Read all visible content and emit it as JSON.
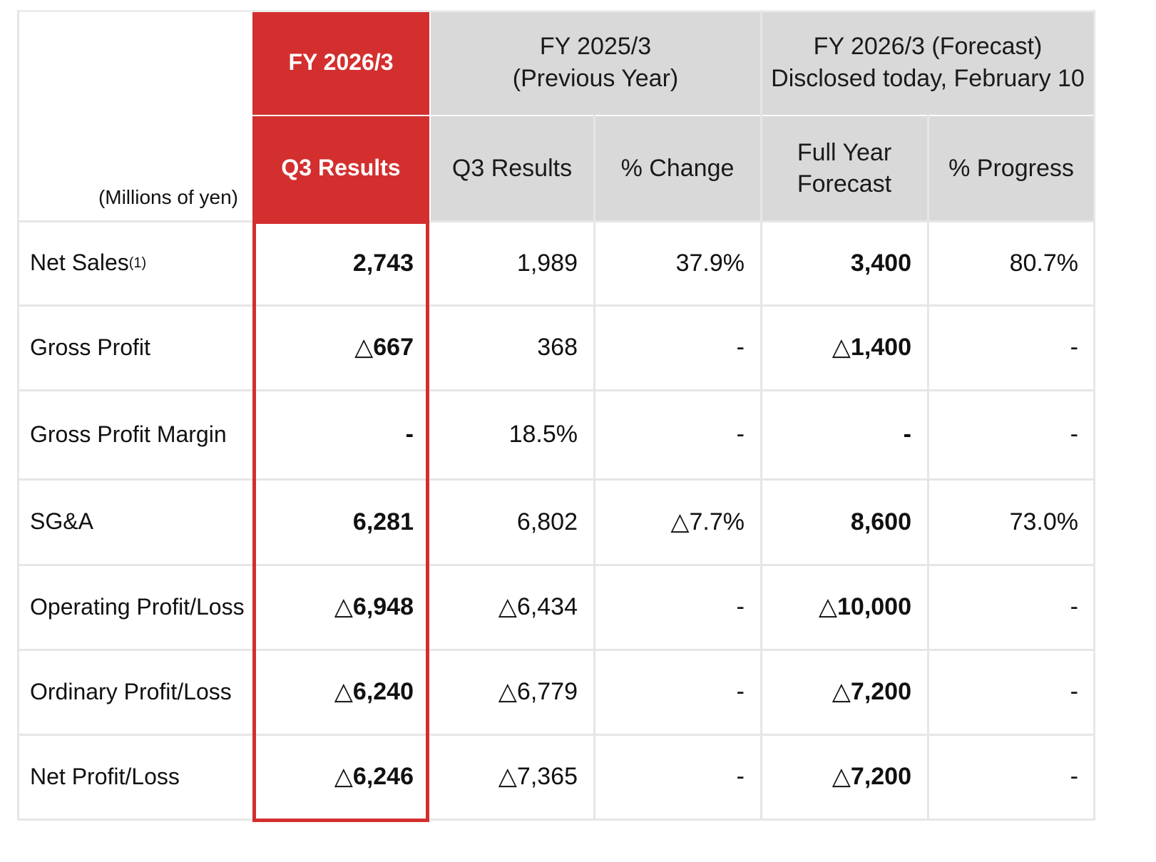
{
  "header": {
    "units_label": "(Millions of yen)",
    "current_year": "FY 2026/3",
    "current_sub": "Q3 Results",
    "prev_year_line1": "FY 2025/3",
    "prev_year_line2": "(Previous Year)",
    "prev_sub_results": "Q3 Results",
    "prev_sub_change": "% Change",
    "forecast_line1": "FY 2026/3 (Forecast)",
    "forecast_line2": "Disclosed today, February 10",
    "forecast_sub_line1": "Full Year",
    "forecast_sub_line2": "Forecast",
    "forecast_sub_progress": "% Progress"
  },
  "rows": [
    {
      "label": "Net Sales",
      "note": "(1)",
      "q3_2026": "2,743",
      "q3_2025": "1,989",
      "change": "37.9%",
      "forecast": "3,400",
      "progress": "80.7%"
    },
    {
      "label": "Gross Profit",
      "note": "",
      "q3_2026": "△667",
      "q3_2025": "368",
      "change": "-",
      "forecast": "△1,400",
      "progress": "-"
    },
    {
      "label": "Gross Profit Margin",
      "note": "",
      "q3_2026": "-",
      "q3_2025": "18.5%",
      "change": "-",
      "forecast": "-",
      "progress": "-"
    },
    {
      "label": "SG&A",
      "note": "",
      "q3_2026": "6,281",
      "q3_2025": "6,802",
      "change": "△7.7%",
      "forecast": "8,600",
      "progress": "73.0%"
    },
    {
      "label": "Operating Profit/Loss",
      "note": "",
      "q3_2026": "△6,948",
      "q3_2025": "△6,434",
      "change": "-",
      "forecast": "△10,000",
      "progress": "-"
    },
    {
      "label": "Ordinary Profit/Loss",
      "note": "",
      "q3_2026": "△6,240",
      "q3_2025": "△6,779",
      "change": "-",
      "forecast": "△7,200",
      "progress": "-"
    },
    {
      "label": "Net Profit/Loss",
      "note": "",
      "q3_2026": "△6,246",
      "q3_2025": "△7,365",
      "change": "-",
      "forecast": "△7,200",
      "progress": "-"
    }
  ],
  "colors": {
    "accent": "#d32f2f",
    "header_bg": "#d9d9d9",
    "grid": "#e6e6e6"
  }
}
